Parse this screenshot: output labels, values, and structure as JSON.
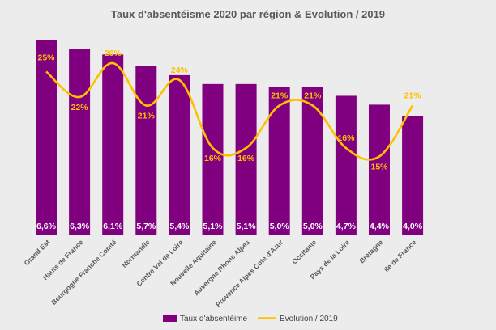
{
  "chart_data": {
    "type": "bar",
    "title": "Taux d'absentéisme 2020 par région & Evolution / 2019",
    "categories": [
      "Grand Est",
      "Hauts de France",
      "Bourgogne Franche Comté",
      "Normandie",
      "Centre Val de Loire",
      "Nouvelle Aquitaine",
      "Auvergne Rhone Alpes",
      "Provence Alpes Cote d'Azur",
      "Occitanie",
      "Pays de la Loire",
      "Bretagne",
      "Ile de France"
    ],
    "series": [
      {
        "name": "Taux d'absentéime",
        "type": "bar",
        "values": [
          6.6,
          6.3,
          6.1,
          5.7,
          5.4,
          5.1,
          5.1,
          5.0,
          5.0,
          4.7,
          4.4,
          4.0
        ],
        "labels": [
          "6,6%",
          "6,3%",
          "6,1%",
          "5,7%",
          "5,4%",
          "5,1%",
          "5,1%",
          "5,0%",
          "5,0%",
          "4,7%",
          "4,4%",
          "4,0%"
        ],
        "color": "#800080"
      },
      {
        "name": "Evolution / 2019",
        "type": "line",
        "values": [
          25,
          22,
          26,
          21,
          24,
          16,
          16,
          21,
          21,
          16,
          15,
          21
        ],
        "labels": [
          "25%",
          "22%",
          "26%",
          "21%",
          "24%",
          "16%",
          "16%",
          "21%",
          "21%",
          "16%",
          "15%",
          "21%"
        ],
        "color": "#ffc000"
      }
    ],
    "xlabel": "",
    "ylabel": "",
    "grid": false,
    "legend": "bottom"
  }
}
